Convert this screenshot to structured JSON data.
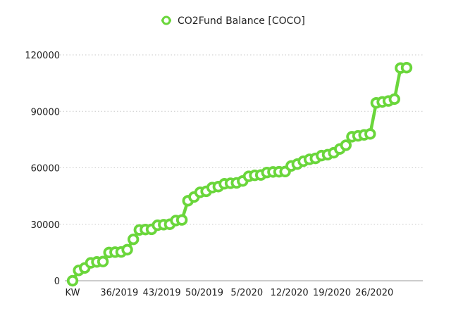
{
  "chart_data": {
    "type": "line",
    "title": "",
    "xlabel": "",
    "ylabel": "",
    "legend": {
      "position": "top-center",
      "entries": [
        "CO2Fund Balance [COCO]"
      ]
    },
    "series": [
      {
        "name": "CO2Fund Balance [COCO]",
        "color": "#6ad63b",
        "values": [
          0,
          5500,
          6800,
          9500,
          10000,
          10200,
          15000,
          15200,
          15300,
          16500,
          22000,
          27000,
          27200,
          27300,
          29500,
          29800,
          30000,
          32000,
          32300,
          42500,
          44500,
          47000,
          47500,
          49500,
          50000,
          51500,
          51800,
          52000,
          53000,
          55500,
          56000,
          56200,
          57500,
          57800,
          57900,
          58000,
          61000,
          62000,
          63500,
          64500,
          65000,
          66500,
          67000,
          68000,
          70000,
          72000,
          76500,
          77000,
          77500,
          78000,
          94500,
          95000,
          95500,
          96500,
          113000,
          113200
        ]
      }
    ],
    "x_tick_labels": [
      "KW",
      "36/2019",
      "43/2019",
      "50/2019",
      "5/2020",
      "12/2020",
      "19/2020",
      "26/2020"
    ],
    "x_tick_indices": [
      0,
      7,
      14,
      21,
      28,
      35,
      42,
      49
    ],
    "y_ticks": [
      0,
      30000,
      60000,
      90000,
      120000
    ],
    "y_tick_labels": [
      "0",
      "30000",
      "60000",
      "90000",
      "120000"
    ],
    "ylim": [
      0,
      120000
    ],
    "grid": {
      "horizontal": true,
      "vertical": false,
      "style": "dotted"
    },
    "marker": "hollow-circle"
  }
}
